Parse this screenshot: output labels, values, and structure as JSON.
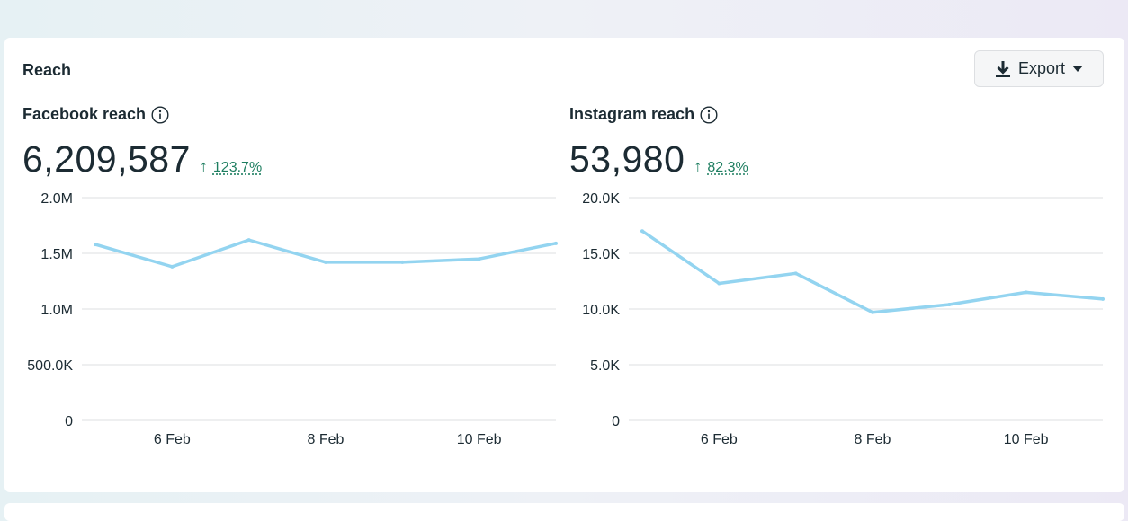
{
  "card": {
    "title": "Reach",
    "export_label": "Export"
  },
  "facebook": {
    "title": "Facebook reach",
    "value": "6,209,587",
    "change_arrow": "↑",
    "change_pct": "123.7%"
  },
  "instagram": {
    "title": "Instagram reach",
    "value": "53,980",
    "change_arrow": "↑",
    "change_pct": "82.3%"
  },
  "colors": {
    "line": "#93d4f0",
    "grid": "#dddfe2",
    "positive": "#1e7e60"
  },
  "chart_data": [
    {
      "type": "line",
      "key": "facebook",
      "title": "",
      "xlabel": "",
      "ylabel": "",
      "x": [
        "5 Feb",
        "6 Feb",
        "7 Feb",
        "8 Feb",
        "9 Feb",
        "10 Feb",
        "11 Feb"
      ],
      "x_tick_labels": [
        "6 Feb",
        "8 Feb",
        "10 Feb"
      ],
      "y_ticks": [
        0,
        500000,
        1000000,
        1500000,
        2000000
      ],
      "y_tick_labels": [
        "0",
        "500.0K",
        "1.0M",
        "1.5M",
        "2.0M"
      ],
      "ylim": [
        0,
        2000000
      ],
      "grid": true,
      "series": [
        {
          "values": [
            1580000,
            1380000,
            1620000,
            1420000,
            1420000,
            1450000,
            1590000
          ]
        }
      ]
    },
    {
      "type": "line",
      "key": "instagram",
      "title": "",
      "xlabel": "",
      "ylabel": "",
      "x": [
        "5 Feb",
        "6 Feb",
        "7 Feb",
        "8 Feb",
        "9 Feb",
        "10 Feb",
        "11 Feb"
      ],
      "x_tick_labels": [
        "6 Feb",
        "8 Feb",
        "10 Feb"
      ],
      "y_ticks": [
        0,
        5000,
        10000,
        15000,
        20000
      ],
      "y_tick_labels": [
        "0",
        "5.0K",
        "10.0K",
        "15.0K",
        "20.0K"
      ],
      "ylim": [
        0,
        20000
      ],
      "grid": true,
      "series": [
        {
          "values": [
            17000,
            12300,
            13200,
            9700,
            10400,
            11500,
            10900
          ]
        }
      ]
    }
  ]
}
